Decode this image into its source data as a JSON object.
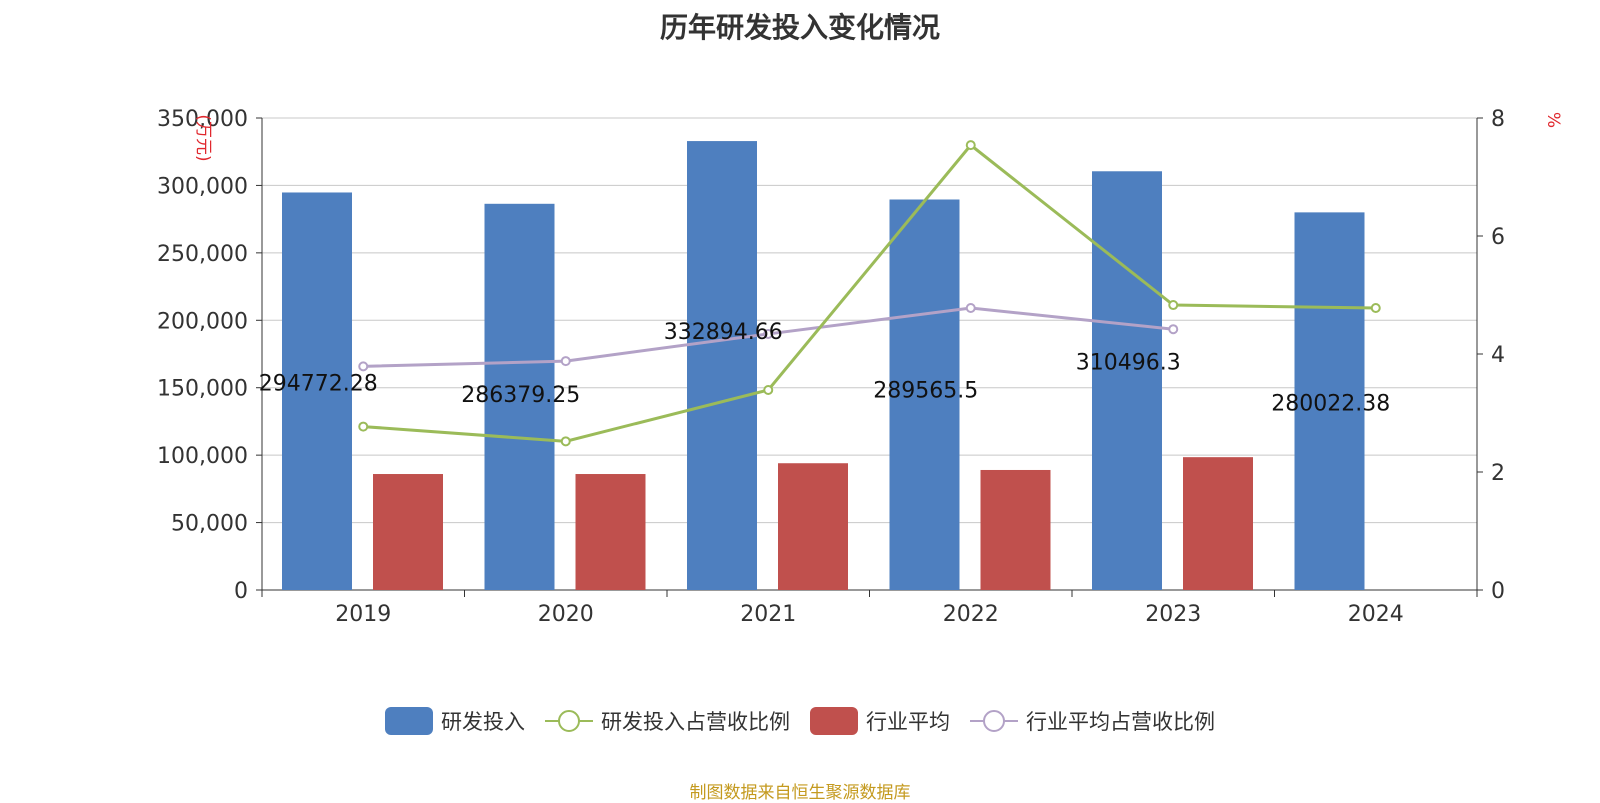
{
  "title": "历年研发投入变化情况",
  "source": "制图数据来自恒生聚源数据库",
  "colors": {
    "rd_bar": "#4e7fbf",
    "avg_bar": "#c0504d",
    "rd_ratio_line": "#9bbb59",
    "avg_ratio_line": "#b3a2c7",
    "unit_label": "#e0282e"
  },
  "legend": [
    {
      "label": "研发投入",
      "kind": "bar",
      "color": "#4e7fbf"
    },
    {
      "label": "研发投入占营收比例",
      "kind": "line",
      "color": "#9bbb59"
    },
    {
      "label": "行业平均",
      "kind": "bar",
      "color": "#c0504d"
    },
    {
      "label": "行业平均占营收比例",
      "kind": "line",
      "color": "#b3a2c7"
    }
  ],
  "chart_data": {
    "type": "bar",
    "title": "历年研发投入变化情况",
    "categories": [
      "2019",
      "2020",
      "2021",
      "2022",
      "2023",
      "2024"
    ],
    "y_left": {
      "unit": "(万元)",
      "range": [
        0,
        350000
      ],
      "ticks": [
        0,
        50000,
        100000,
        150000,
        200000,
        250000,
        300000,
        350000
      ],
      "tick_labels": [
        "0",
        "50,000",
        "100,000",
        "150,000",
        "200,000",
        "250,000",
        "300,000",
        "350,000"
      ]
    },
    "y_right": {
      "unit": "%",
      "range": [
        0,
        8
      ],
      "ticks": [
        0,
        2,
        4,
        6,
        8
      ],
      "tick_labels": [
        "0",
        "2",
        "4",
        "6",
        "8"
      ]
    },
    "series": [
      {
        "name": "研发投入",
        "type": "bar",
        "axis": "left",
        "values": [
          294772.28,
          286379.25,
          332894.66,
          289565.5,
          310496.3,
          280022.38
        ],
        "data_labels": [
          "294772.28",
          "286379.25",
          "332894.66",
          "289565.5",
          "310496.3",
          "280022.38"
        ]
      },
      {
        "name": "行业平均",
        "type": "bar",
        "axis": "left",
        "values": [
          86000,
          86000,
          94000,
          89000,
          98500,
          null
        ]
      },
      {
        "name": "研发投入占营收比例",
        "type": "line",
        "axis": "right",
        "values": [
          2.77,
          2.52,
          3.39,
          7.54,
          4.83,
          4.78
        ]
      },
      {
        "name": "行业平均占营收比例",
        "type": "line",
        "axis": "right",
        "values": [
          3.79,
          3.88,
          4.34,
          4.78,
          4.42,
          null
        ]
      }
    ],
    "grid": true,
    "legend_position": "bottom"
  }
}
